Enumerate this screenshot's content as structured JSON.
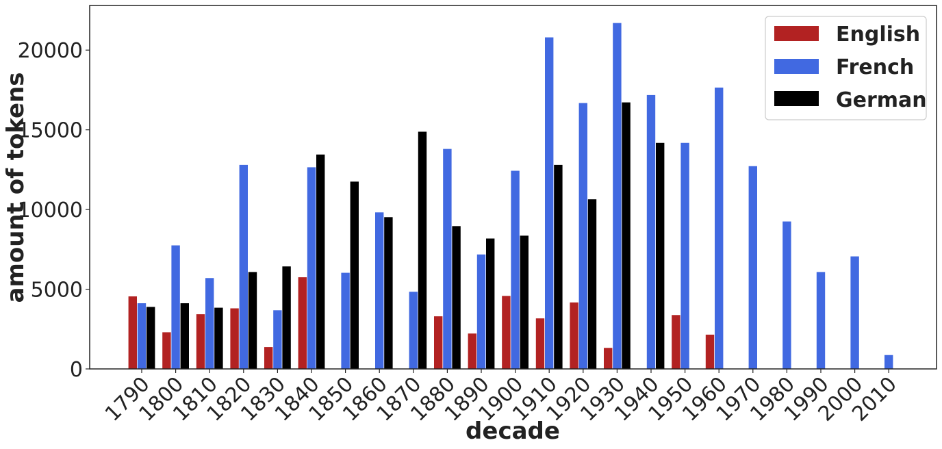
{
  "chart_data": {
    "type": "bar",
    "title": "",
    "xlabel": "decade",
    "ylabel": "amount of tokens",
    "ylim": [
      0,
      22800
    ],
    "yticks": [
      0,
      5000,
      10000,
      15000,
      20000
    ],
    "grid": false,
    "legend_position": "top-right",
    "categories": [
      "1790",
      "1800",
      "1810",
      "1820",
      "1830",
      "1840",
      "1850",
      "1860",
      "1870",
      "1880",
      "1890",
      "1900",
      "1910",
      "1920",
      "1930",
      "1940",
      "1950",
      "1960",
      "1970",
      "1980",
      "1990",
      "2000",
      "2010"
    ],
    "series": [
      {
        "name": "English",
        "color": "#b22222",
        "values": [
          4550,
          2300,
          3430,
          3800,
          1370,
          5750,
          0,
          0,
          0,
          3300,
          2220,
          4580,
          3170,
          4170,
          1320,
          0,
          3380,
          2150,
          0,
          0,
          0,
          0,
          0
        ]
      },
      {
        "name": "French",
        "color": "#4169e1",
        "values": [
          4120,
          7750,
          5700,
          12800,
          3680,
          12650,
          6030,
          9820,
          4840,
          13800,
          7180,
          12430,
          20800,
          16680,
          21700,
          17180,
          14180,
          17650,
          12720,
          9250,
          6080,
          7060,
          870
        ]
      },
      {
        "name": "German",
        "color": "#000000",
        "values": [
          3890,
          4120,
          3840,
          6080,
          6430,
          13450,
          11750,
          9520,
          14880,
          8960,
          8180,
          8360,
          12800,
          10640,
          16720,
          14180,
          0,
          0,
          0,
          0,
          0,
          0,
          0
        ]
      }
    ]
  }
}
